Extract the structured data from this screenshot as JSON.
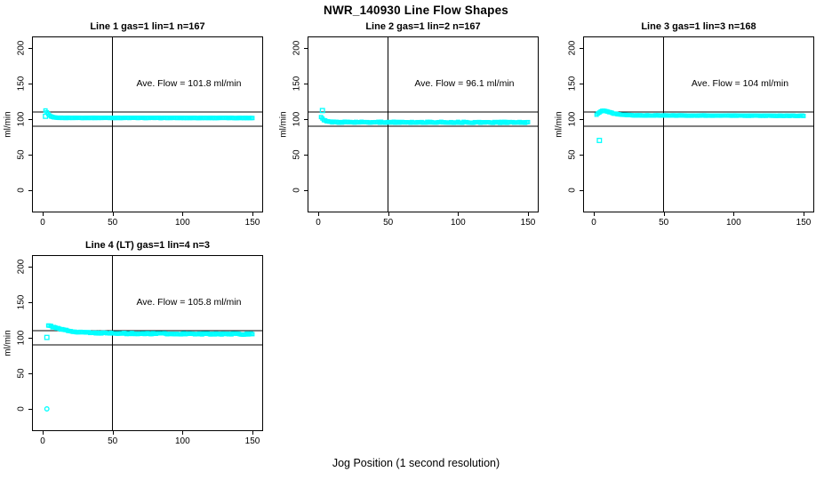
{
  "main_title": "NWR_140930  Line Flow Shapes",
  "xlabel": "Jog Position (1 second resolution)",
  "colors": {
    "points": "#00FFFF",
    "axis": "#000000",
    "background": "#FFFFFF"
  },
  "chart_data": [
    {
      "type": "scatter",
      "title": "Line 1 gas=1 lin=1 n=167",
      "annotation": "Ave. Flow =  101.8  ml/min",
      "ave_flow_ml_min": 101.8,
      "n": 167,
      "ylabel": "ml/min",
      "xticks": [
        0,
        50,
        100,
        150
      ],
      "yticks": [
        0,
        50,
        100,
        150,
        200
      ],
      "xlim": [
        -7,
        157
      ],
      "ylim": [
        -30,
        215
      ],
      "ref_hlines": [
        90,
        110
      ],
      "ref_vline": 50,
      "x_start": 2,
      "x_end": 150,
      "trend_keyframes": [
        [
          2,
          112
        ],
        [
          3,
          109.5
        ],
        [
          4,
          107
        ],
        [
          5,
          105
        ],
        [
          6,
          103.5
        ],
        [
          8,
          102.3
        ],
        [
          10,
          101.9
        ],
        [
          15,
          101.8
        ],
        [
          150,
          101.6
        ]
      ],
      "jitter": 0.25,
      "outliers": [
        {
          "x": 2,
          "y": 104,
          "shape": "square"
        }
      ]
    },
    {
      "type": "scatter",
      "title": "Line 2 gas=1 lin=2 n=167",
      "annotation": "Ave. Flow =  96.1  ml/min",
      "ave_flow_ml_min": 96.1,
      "n": 167,
      "ylabel": "ml/min",
      "xticks": [
        0,
        50,
        100,
        150
      ],
      "yticks": [
        0,
        50,
        100,
        150,
        200
      ],
      "xlim": [
        -7,
        157
      ],
      "ylim": [
        -30,
        215
      ],
      "ref_hlines": [
        90,
        110
      ],
      "ref_vline": 50,
      "x_start": 2,
      "x_end": 150,
      "trend_keyframes": [
        [
          2,
          102.5
        ],
        [
          3,
          100.5
        ],
        [
          4,
          98.5
        ],
        [
          6,
          96.8
        ],
        [
          9,
          96
        ],
        [
          15,
          95.7
        ],
        [
          150,
          95.3
        ]
      ],
      "jitter": 0.7,
      "outliers": [
        {
          "x": 3,
          "y": 112,
          "shape": "square"
        }
      ]
    },
    {
      "type": "scatter",
      "title": "Line 3 gas=1 lin=3 n=168",
      "annotation": "Ave. Flow =  104  ml/min",
      "ave_flow_ml_min": 104,
      "n": 168,
      "ylabel": "ml/min",
      "xticks": [
        0,
        50,
        100,
        150
      ],
      "yticks": [
        0,
        50,
        100,
        150,
        200
      ],
      "xlim": [
        -7,
        157
      ],
      "ylim": [
        -30,
        215
      ],
      "ref_hlines": [
        90,
        110
      ],
      "ref_vline": 50,
      "x_start": 2,
      "x_end": 150,
      "trend_keyframes": [
        [
          2,
          106
        ],
        [
          3,
          108
        ],
        [
          5,
          111
        ],
        [
          7,
          112
        ],
        [
          10,
          110.5
        ],
        [
          14,
          108
        ],
        [
          20,
          106
        ],
        [
          30,
          105.2
        ],
        [
          150,
          104.7
        ]
      ],
      "jitter": 0.3,
      "outliers": [
        {
          "x": 4,
          "y": 70,
          "shape": "square"
        }
      ]
    },
    {
      "type": "scatter",
      "title": "Line 4 (LT) gas=1 lin=4 n=3",
      "annotation": "Ave. Flow =  105.8  ml/min",
      "ave_flow_ml_min": 105.8,
      "n": 3,
      "ylabel": "ml/min",
      "xticks": [
        0,
        50,
        100,
        150
      ],
      "yticks": [
        0,
        50,
        100,
        150,
        200
      ],
      "xlim": [
        -7,
        157
      ],
      "ylim": [
        -30,
        215
      ],
      "ref_hlines": [
        90,
        110
      ],
      "ref_vline": 50,
      "x_start": 4,
      "x_end": 150,
      "trend_keyframes": [
        [
          4,
          117.5
        ],
        [
          6,
          116
        ],
        [
          10,
          113.5
        ],
        [
          15,
          111
        ],
        [
          20,
          109.3
        ],
        [
          27,
          108
        ],
        [
          35,
          107
        ],
        [
          45,
          106.4
        ],
        [
          60,
          106
        ],
        [
          90,
          105.7
        ],
        [
          150,
          105.2
        ]
      ],
      "jitter": 0.8,
      "outliers": [
        {
          "x": 3,
          "y": 0,
          "shape": "circle"
        },
        {
          "x": 3,
          "y": 100.5,
          "shape": "square"
        }
      ]
    }
  ]
}
